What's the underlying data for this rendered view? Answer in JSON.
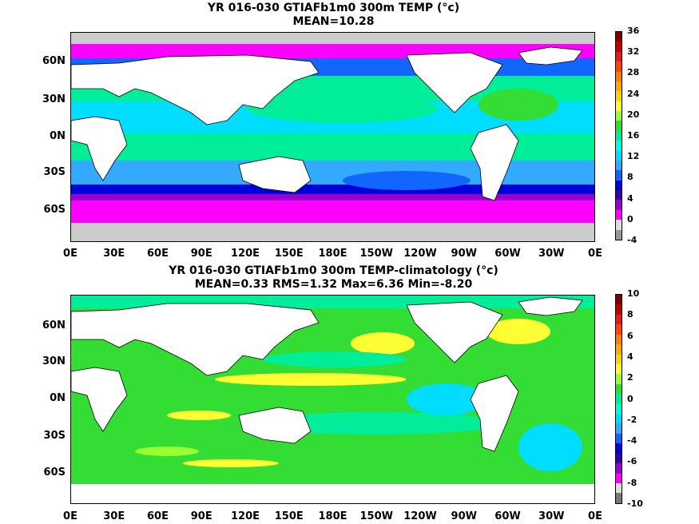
{
  "panel1": {
    "title_line1": "YR 016-030 GTIAFb1m0 300m TEMP (°c)",
    "title_line2": "MEAN=10.28",
    "colorbar": {
      "labels": [
        "36",
        "32",
        "28",
        "24",
        "20",
        "16",
        "12",
        "8",
        "4",
        "0",
        "-4"
      ],
      "colors": [
        "#7f0000",
        "#c00000",
        "#e41a1c",
        "#ff4500",
        "#ff7f00",
        "#ffaa00",
        "#ffd700",
        "#ffff33",
        "#99ff33",
        "#33dd33",
        "#00ee99",
        "#00ffdd",
        "#00ddff",
        "#33aaff",
        "#1166ff",
        "#0000dd",
        "#3300aa",
        "#9900cc",
        "#ff00ff",
        "#dddddd",
        "#999999"
      ]
    }
  },
  "panel2": {
    "title_line1": "YR 016-030 GTIAFb1m0 300m TEMP-climatology (°c)",
    "title_line2": "MEAN=0.33   RMS=1.32   Max=6.36   Min=-8.20",
    "colorbar": {
      "labels": [
        "10",
        "8",
        "6",
        "4",
        "2",
        "0",
        "-2",
        "-4",
        "-6",
        "-8",
        "-10"
      ],
      "colors": [
        "#7f0000",
        "#c00000",
        "#e41a1c",
        "#ff4500",
        "#ff7f00",
        "#ffaa00",
        "#ffd700",
        "#ffff33",
        "#99ff33",
        "#33dd33",
        "#00ee99",
        "#00ffdd",
        "#00ddff",
        "#33aaff",
        "#1166ff",
        "#0000dd",
        "#3300aa",
        "#9900cc",
        "#ff00ff",
        "#dddddd",
        "#777777"
      ]
    }
  },
  "x_ticks": [
    "0E",
    "30E",
    "60E",
    "90E",
    "120E",
    "150E",
    "180E",
    "150W",
    "120W",
    "90W",
    "60W",
    "30W",
    "0E"
  ],
  "y_ticks": [
    "60N",
    "30N",
    "0N",
    "30S",
    "60S"
  ]
}
